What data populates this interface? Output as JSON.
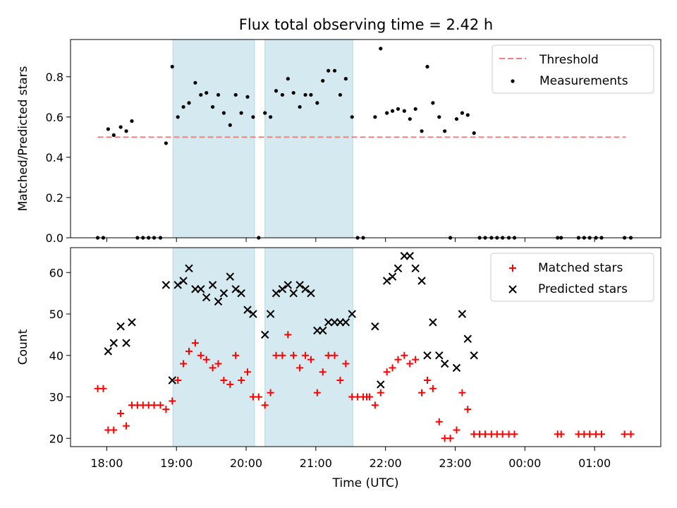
{
  "chart_data": {
    "type": "scatter",
    "title": "Flux total observing time = 2.42 h",
    "xlabel": "Time (UTC)",
    "x_unit": "hours since 00:00 of the first night (values over 24 are after midnight)",
    "xlim": [
      17.48,
      25.95
    ],
    "x_ticks": [
      18,
      19,
      20,
      21,
      22,
      23,
      24,
      25
    ],
    "x_tick_labels": [
      "18:00",
      "19:00",
      "20:00",
      "21:00",
      "22:00",
      "23:00",
      "00:00",
      "01:00"
    ],
    "shaded_intervals": [
      [
        18.95,
        20.12
      ],
      [
        20.27,
        21.53
      ]
    ],
    "shade_color": "#d4eaf0",
    "panels": [
      {
        "id": "ratio",
        "ylabel": "Matched/Predicted stars",
        "ylim": [
          0,
          0.985
        ],
        "y_ticks": [
          0.0,
          0.2,
          0.4,
          0.6,
          0.8
        ],
        "y_tick_labels": [
          "0.0",
          "0.2",
          "0.4",
          "0.6",
          "0.8"
        ],
        "threshold": {
          "name": "Threshold",
          "value": 0.5,
          "x_range": [
            17.87,
            25.45
          ],
          "color": "#f08080"
        },
        "series": [
          {
            "name": "Measurements",
            "marker": "dot",
            "color": "#000000",
            "points": [
              [
                17.87,
                0
              ],
              [
                17.95,
                0
              ],
              [
                18.02,
                0.54
              ],
              [
                18.1,
                0.51
              ],
              [
                18.2,
                0.55
              ],
              [
                18.28,
                0.53
              ],
              [
                18.36,
                0.58
              ],
              [
                18.44,
                0
              ],
              [
                18.52,
                0
              ],
              [
                18.6,
                0
              ],
              [
                18.68,
                0
              ],
              [
                18.77,
                0
              ],
              [
                18.85,
                0.47
              ],
              [
                18.94,
                0.85
              ],
              [
                19.02,
                0.6
              ],
              [
                19.1,
                0.65
              ],
              [
                19.18,
                0.67
              ],
              [
                19.27,
                0.77
              ],
              [
                19.35,
                0.71
              ],
              [
                19.43,
                0.72
              ],
              [
                19.52,
                0.65
              ],
              [
                19.6,
                0.71
              ],
              [
                19.68,
                0.62
              ],
              [
                19.77,
                0.56
              ],
              [
                19.85,
                0.71
              ],
              [
                19.93,
                0.62
              ],
              [
                20.02,
                0.7
              ],
              [
                20.1,
                0.6
              ],
              [
                20.18,
                0
              ],
              [
                20.27,
                0.62
              ],
              [
                20.35,
                0.6
              ],
              [
                20.43,
                0.73
              ],
              [
                20.52,
                0.71
              ],
              [
                20.6,
                0.79
              ],
              [
                20.68,
                0.72
              ],
              [
                20.77,
                0.65
              ],
              [
                20.85,
                0.71
              ],
              [
                20.93,
                0.71
              ],
              [
                21.02,
                0.67
              ],
              [
                21.1,
                0.78
              ],
              [
                21.18,
                0.83
              ],
              [
                21.27,
                0.83
              ],
              [
                21.35,
                0.71
              ],
              [
                21.43,
                0.79
              ],
              [
                21.52,
                0.6
              ],
              [
                21.6,
                0
              ],
              [
                21.68,
                0
              ],
              [
                21.85,
                0.6
              ],
              [
                21.93,
                0.94
              ],
              [
                22.02,
                0.62
              ],
              [
                22.1,
                0.63
              ],
              [
                22.18,
                0.64
              ],
              [
                22.27,
                0.63
              ],
              [
                22.35,
                0.59
              ],
              [
                22.43,
                0.64
              ],
              [
                22.52,
                0.53
              ],
              [
                22.6,
                0.85
              ],
              [
                22.68,
                0.67
              ],
              [
                22.77,
                0.6
              ],
              [
                22.85,
                0.53
              ],
              [
                22.93,
                0
              ],
              [
                23.02,
                0.59
              ],
              [
                23.1,
                0.62
              ],
              [
                23.18,
                0.61
              ],
              [
                23.27,
                0.52
              ],
              [
                23.35,
                0
              ],
              [
                23.43,
                0
              ],
              [
                23.52,
                0
              ],
              [
                23.6,
                0
              ],
              [
                23.68,
                0
              ],
              [
                23.77,
                0
              ],
              [
                23.85,
                0
              ],
              [
                24.47,
                0
              ],
              [
                24.52,
                0
              ],
              [
                24.77,
                0
              ],
              [
                24.85,
                0
              ],
              [
                24.93,
                0
              ],
              [
                25.02,
                0
              ],
              [
                25.1,
                0
              ],
              [
                25.43,
                0
              ],
              [
                25.52,
                0
              ]
            ]
          }
        ]
      },
      {
        "id": "counts",
        "ylabel": "Count",
        "ylim": [
          18,
          66
        ],
        "y_ticks": [
          20,
          30,
          40,
          50,
          60
        ],
        "y_tick_labels": [
          "20",
          "30",
          "40",
          "50",
          "60"
        ],
        "series": [
          {
            "name": "Matched stars",
            "marker": "plus",
            "color": "#ff0000",
            "points": [
              [
                17.87,
                32
              ],
              [
                17.95,
                32
              ],
              [
                18.02,
                22
              ],
              [
                18.1,
                22
              ],
              [
                18.2,
                26
              ],
              [
                18.28,
                23
              ],
              [
                18.36,
                28
              ],
              [
                18.44,
                28
              ],
              [
                18.52,
                28
              ],
              [
                18.6,
                28
              ],
              [
                18.68,
                28
              ],
              [
                18.77,
                28
              ],
              [
                18.85,
                27
              ],
              [
                18.94,
                29
              ],
              [
                19.02,
                34
              ],
              [
                19.1,
                38
              ],
              [
                19.18,
                41
              ],
              [
                19.27,
                43
              ],
              [
                19.35,
                40
              ],
              [
                19.43,
                39
              ],
              [
                19.52,
                37
              ],
              [
                19.6,
                38
              ],
              [
                19.68,
                34
              ],
              [
                19.77,
                33
              ],
              [
                19.85,
                40
              ],
              [
                19.93,
                34
              ],
              [
                20.02,
                36
              ],
              [
                20.1,
                30
              ],
              [
                20.18,
                30
              ],
              [
                20.27,
                28
              ],
              [
                20.35,
                31
              ],
              [
                20.43,
                40
              ],
              [
                20.52,
                40
              ],
              [
                20.6,
                45
              ],
              [
                20.68,
                40
              ],
              [
                20.77,
                37
              ],
              [
                20.85,
                40
              ],
              [
                20.93,
                39
              ],
              [
                21.02,
                31
              ],
              [
                21.1,
                36
              ],
              [
                21.18,
                40
              ],
              [
                21.27,
                40
              ],
              [
                21.35,
                34
              ],
              [
                21.43,
                38
              ],
              [
                21.52,
                30
              ],
              [
                21.6,
                30
              ],
              [
                21.68,
                30
              ],
              [
                21.73,
                30
              ],
              [
                21.77,
                30
              ],
              [
                21.85,
                28
              ],
              [
                21.93,
                31
              ],
              [
                22.02,
                36
              ],
              [
                22.1,
                37
              ],
              [
                22.18,
                39
              ],
              [
                22.27,
                40
              ],
              [
                22.35,
                38
              ],
              [
                22.43,
                39
              ],
              [
                22.52,
                31
              ],
              [
                22.6,
                34
              ],
              [
                22.68,
                32
              ],
              [
                22.77,
                24
              ],
              [
                22.85,
                20
              ],
              [
                22.93,
                20
              ],
              [
                23.02,
                22
              ],
              [
                23.1,
                31
              ],
              [
                23.18,
                27
              ],
              [
                23.27,
                21
              ],
              [
                23.35,
                21
              ],
              [
                23.43,
                21
              ],
              [
                23.52,
                21
              ],
              [
                23.6,
                21
              ],
              [
                23.68,
                21
              ],
              [
                23.77,
                21
              ],
              [
                23.85,
                21
              ],
              [
                24.47,
                21
              ],
              [
                24.52,
                21
              ],
              [
                24.77,
                21
              ],
              [
                24.85,
                21
              ],
              [
                24.93,
                21
              ],
              [
                25.02,
                21
              ],
              [
                25.1,
                21
              ],
              [
                25.43,
                21
              ],
              [
                25.52,
                21
              ]
            ]
          },
          {
            "name": "Predicted stars",
            "marker": "x",
            "color": "#000000",
            "points": [
              [
                18.02,
                41
              ],
              [
                18.1,
                43
              ],
              [
                18.2,
                47
              ],
              [
                18.28,
                43
              ],
              [
                18.36,
                48
              ],
              [
                18.85,
                57
              ],
              [
                18.94,
                34
              ],
              [
                19.02,
                57
              ],
              [
                19.1,
                58
              ],
              [
                19.18,
                61
              ],
              [
                19.27,
                56
              ],
              [
                19.35,
                56
              ],
              [
                19.43,
                54
              ],
              [
                19.52,
                57
              ],
              [
                19.6,
                53
              ],
              [
                19.68,
                55
              ],
              [
                19.77,
                59
              ],
              [
                19.85,
                56
              ],
              [
                19.93,
                55
              ],
              [
                20.02,
                51
              ],
              [
                20.1,
                50
              ],
              [
                20.27,
                45
              ],
              [
                20.35,
                50
              ],
              [
                20.43,
                55
              ],
              [
                20.52,
                56
              ],
              [
                20.6,
                57
              ],
              [
                20.68,
                55
              ],
              [
                20.77,
                57
              ],
              [
                20.85,
                56
              ],
              [
                20.93,
                55
              ],
              [
                21.02,
                46
              ],
              [
                21.1,
                46
              ],
              [
                21.18,
                48
              ],
              [
                21.27,
                48
              ],
              [
                21.35,
                48
              ],
              [
                21.43,
                48
              ],
              [
                21.52,
                50
              ],
              [
                21.85,
                47
              ],
              [
                21.93,
                33
              ],
              [
                22.02,
                58
              ],
              [
                22.1,
                59
              ],
              [
                22.18,
                61
              ],
              [
                22.27,
                64
              ],
              [
                22.35,
                64
              ],
              [
                22.43,
                61
              ],
              [
                22.52,
                58
              ],
              [
                22.6,
                40
              ],
              [
                22.68,
                48
              ],
              [
                22.77,
                40
              ],
              [
                22.85,
                38
              ],
              [
                23.02,
                37
              ],
              [
                23.1,
                50
              ],
              [
                23.18,
                44
              ],
              [
                23.27,
                40
              ]
            ]
          }
        ]
      }
    ]
  }
}
